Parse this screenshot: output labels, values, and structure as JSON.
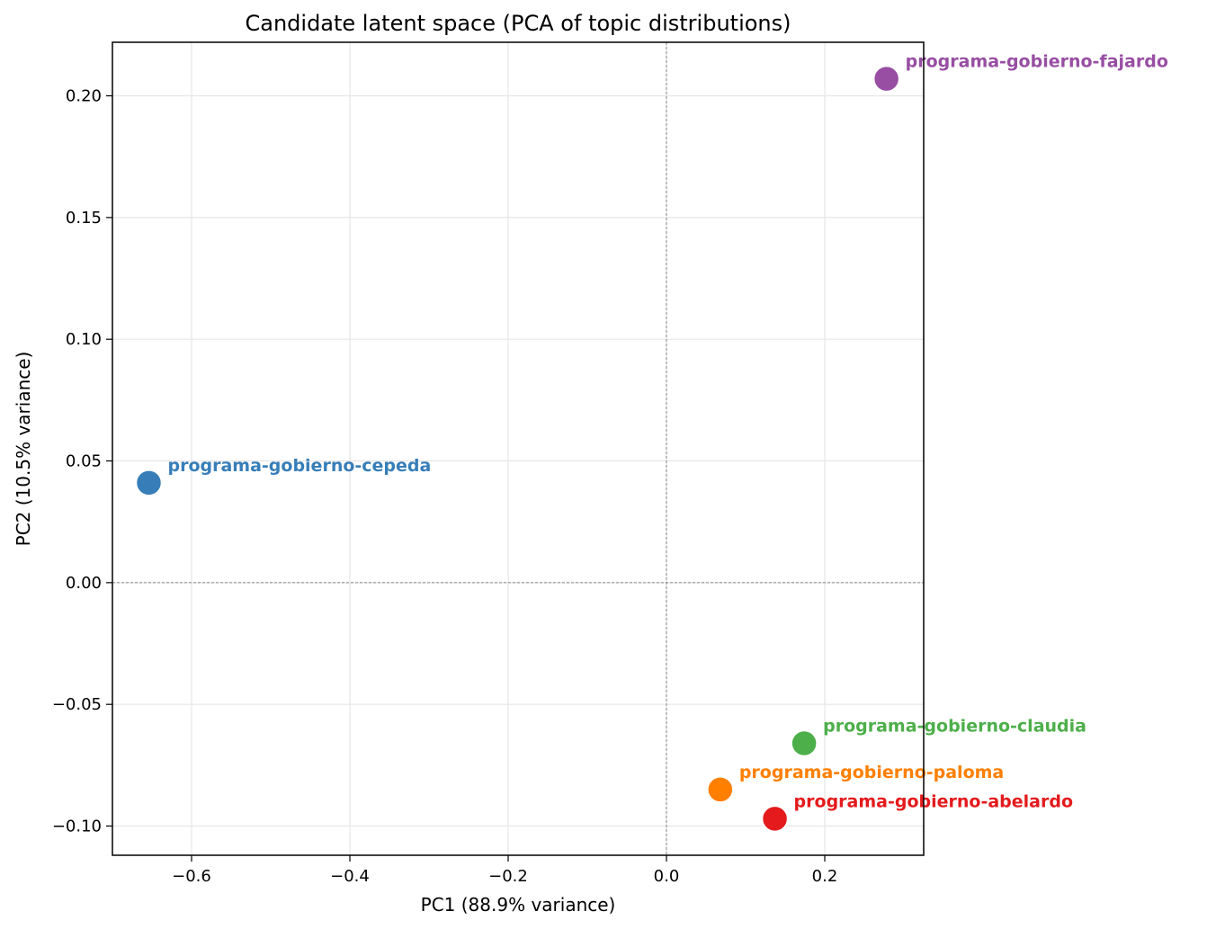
{
  "chart_data": {
    "type": "scatter",
    "title": "Candidate latent space (PCA of topic distributions)",
    "xlabel": "PC1 (88.9% variance)",
    "ylabel": "PC2 (10.5% variance)",
    "xlim": [
      -0.7,
      0.325
    ],
    "ylim": [
      -0.112,
      0.222
    ],
    "x_ticks": [
      {
        "value": -0.6,
        "label": "−0.6"
      },
      {
        "value": -0.4,
        "label": "−0.4"
      },
      {
        "value": -0.2,
        "label": "−0.2"
      },
      {
        "value": 0.0,
        "label": "0.0"
      },
      {
        "value": 0.2,
        "label": "0.2"
      }
    ],
    "y_ticks": [
      {
        "value": 0.2,
        "label": "0.20"
      },
      {
        "value": 0.15,
        "label": "0.15"
      },
      {
        "value": 0.1,
        "label": "0.10"
      },
      {
        "value": 0.05,
        "label": "0.05"
      },
      {
        "value": 0.0,
        "label": "0.00"
      },
      {
        "value": -0.05,
        "label": "−0.05"
      },
      {
        "value": -0.1,
        "label": "−0.10"
      }
    ],
    "grid": true,
    "reference_lines": {
      "x": 0,
      "y": 0
    },
    "points": [
      {
        "label": "programa-gobierno-fajardo",
        "x": 0.278,
        "y": 0.207,
        "color": "#984ea3"
      },
      {
        "label": "programa-gobierno-cepeda",
        "x": -0.654,
        "y": 0.041,
        "color": "#377eb8"
      },
      {
        "label": "programa-gobierno-claudia",
        "x": 0.174,
        "y": -0.066,
        "color": "#4daf4a"
      },
      {
        "label": "programa-gobierno-paloma",
        "x": 0.068,
        "y": -0.085,
        "color": "#ff7f00"
      },
      {
        "label": "programa-gobierno-abelardo",
        "x": 0.137,
        "y": -0.097,
        "color": "#e41a1c"
      }
    ]
  }
}
